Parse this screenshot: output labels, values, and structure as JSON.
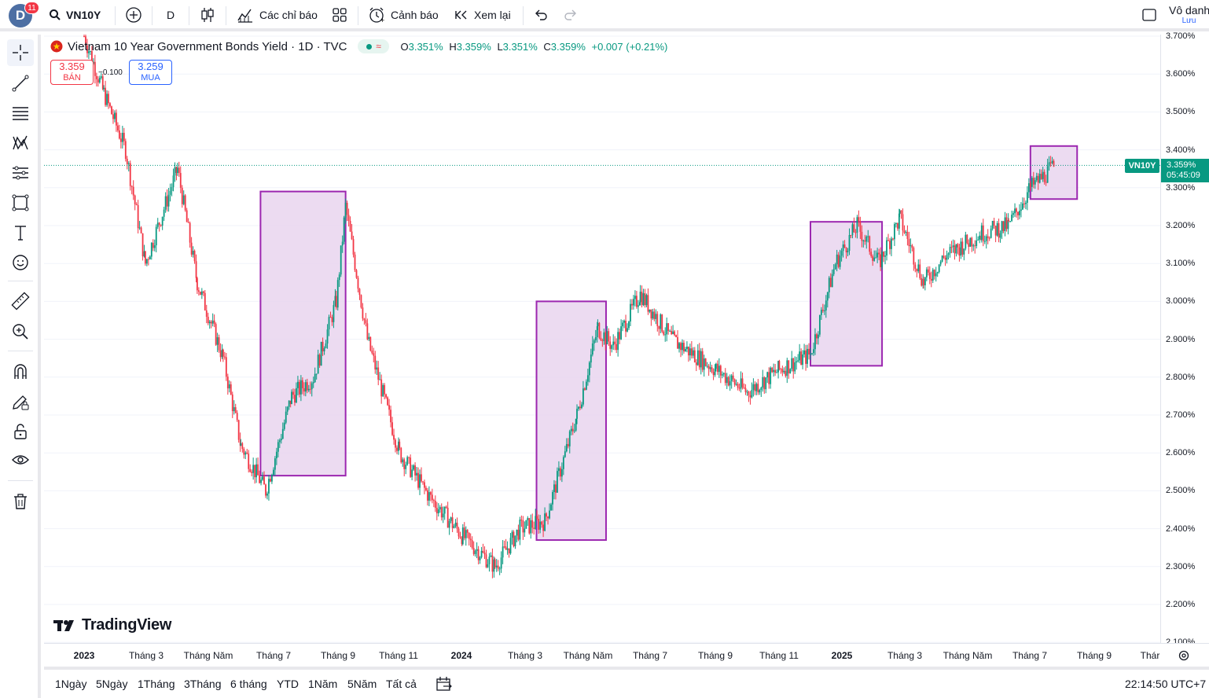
{
  "header": {
    "avatar_letter": "D",
    "notification_count": "11",
    "symbol": "VN10Y",
    "interval": "D",
    "indicators_label": "Các chỉ báo",
    "alert_label": "Cảnh báo",
    "replay_label": "Xem lại",
    "layout_name": "Vô danh",
    "save_label": "Lưu"
  },
  "legend": {
    "title": "Vietnam 10 Year Government Bonds Yield · 1D · TVC",
    "o_key": "O",
    "o_val": "3.351%",
    "h_key": "H",
    "h_val": "3.359%",
    "l_key": "L",
    "l_val": "3.351%",
    "c_key": "C",
    "c_val": "3.359%",
    "change": "+0.007 (+0.21%)"
  },
  "trade": {
    "sell_price": "3.359",
    "sell_label": "BÁN",
    "spread": "−0.100",
    "buy_price": "3.259",
    "buy_label": "MUA"
  },
  "price_axis": {
    "labels": [
      "3.700%",
      "3.600%",
      "3.500%",
      "3.400%",
      "3.300%",
      "3.200%",
      "3.100%",
      "3.000%",
      "2.900%",
      "2.800%",
      "2.700%",
      "2.600%",
      "2.500%",
      "2.400%",
      "2.300%",
      "2.200%",
      "2.100%"
    ],
    "symbol_tag": "VN10Y",
    "last_price": "3.359%",
    "countdown": "05:45:09"
  },
  "time_axis": {
    "labels": [
      {
        "text": "2023",
        "bold": true
      },
      {
        "text": "Tháng 3"
      },
      {
        "text": "Tháng Năm"
      },
      {
        "text": "Tháng 7"
      },
      {
        "text": "Tháng 9"
      },
      {
        "text": "Tháng 11"
      },
      {
        "text": "2024",
        "bold": true
      },
      {
        "text": "Tháng 3"
      },
      {
        "text": "Tháng Năm"
      },
      {
        "text": "Tháng 7"
      },
      {
        "text": "Tháng 9"
      },
      {
        "text": "Tháng 11"
      },
      {
        "text": "2025",
        "bold": true
      },
      {
        "text": "Tháng 3"
      },
      {
        "text": "Tháng Năm"
      },
      {
        "text": "Tháng 7"
      },
      {
        "text": "Tháng 9"
      },
      {
        "text": "Thár"
      }
    ]
  },
  "ranges": [
    "1Ngày",
    "5Ngày",
    "1Tháng",
    "3Tháng",
    "6 tháng",
    "YTD",
    "1Năm",
    "5Năm",
    "Tất cả"
  ],
  "timestamp": "22:14:50 UTC+7",
  "watermark": "TradingView",
  "colors": {
    "up": "#089981",
    "down": "#f23645",
    "highlight_fill": "#e9d5ee",
    "highlight_border": "#9c27b0"
  },
  "chart_data": {
    "type": "candlestick",
    "title": "Vietnam 10 Year Government Bonds Yield · 1D · TVC",
    "ylim": [
      2.1,
      3.7
    ],
    "y_unit": "%",
    "approx_path": [
      [
        "2023-01",
        3.7
      ],
      [
        "2023-01-20",
        3.55
      ],
      [
        "2023-02-10",
        3.4
      ],
      [
        "2023-03-01",
        3.1
      ],
      [
        "2023-04-01",
        3.35
      ],
      [
        "2023-04-20",
        3.05
      ],
      [
        "2023-05-15",
        2.85
      ],
      [
        "2023-06-01",
        2.62
      ],
      [
        "2023-06-25",
        2.5
      ],
      [
        "2023-07-20",
        2.75
      ],
      [
        "2023-08-10",
        2.8
      ],
      [
        "2023-09-01",
        3.0
      ],
      [
        "2023-09-10",
        3.25
      ],
      [
        "2023-10-01",
        2.9
      ],
      [
        "2023-11-01",
        2.6
      ],
      [
        "2023-12-01",
        2.48
      ],
      [
        "2024-01-01",
        2.38
      ],
      [
        "2024-02-01",
        2.3
      ],
      [
        "2024-02-25",
        2.4
      ],
      [
        "2024-03-20",
        2.42
      ],
      [
        "2024-04-20",
        2.7
      ],
      [
        "2024-05-10",
        2.93
      ],
      [
        "2024-05-25",
        2.88
      ],
      [
        "2024-06-20",
        3.02
      ],
      [
        "2024-07-20",
        2.9
      ],
      [
        "2024-09-01",
        2.82
      ],
      [
        "2024-10-01",
        2.76
      ],
      [
        "2024-11-01",
        2.82
      ],
      [
        "2024-12-01",
        2.86
      ],
      [
        "2024-12-25",
        3.1
      ],
      [
        "2025-01-15",
        3.2
      ],
      [
        "2025-02-05",
        3.1
      ],
      [
        "2025-02-25",
        3.22
      ],
      [
        "2025-03-20",
        3.05
      ],
      [
        "2025-04-10",
        3.12
      ],
      [
        "2025-05-15",
        3.18
      ],
      [
        "2025-06-10",
        3.2
      ],
      [
        "2025-07-01",
        3.3
      ],
      [
        "2025-07-25",
        3.359
      ]
    ],
    "last_close": 3.359,
    "highlight_boxes": [
      {
        "from": "2023-06-20",
        "to": "2023-09-10",
        "ymin": 2.54,
        "ymax": 3.29
      },
      {
        "from": "2024-03-12",
        "to": "2024-05-18",
        "ymin": 2.37,
        "ymax": 3.0
      },
      {
        "from": "2024-12-01",
        "to": "2025-02-08",
        "ymin": 2.83,
        "ymax": 3.21
      },
      {
        "from": "2025-07-01",
        "to": "2025-08-15",
        "ymin": 3.27,
        "ymax": 3.41
      }
    ]
  }
}
